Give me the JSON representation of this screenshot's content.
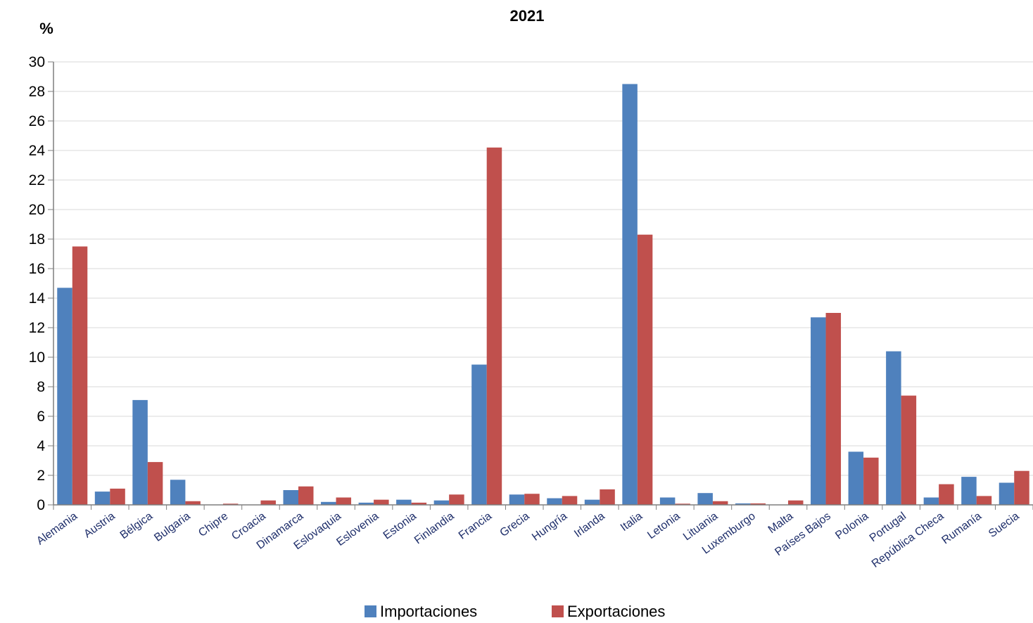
{
  "chart_data": {
    "type": "bar",
    "title": "2021",
    "ylabel": "%",
    "xlabel": "",
    "ylim": [
      0,
      30
    ],
    "yticks": [
      "0",
      "2",
      "4",
      "6",
      "8",
      "10",
      "12",
      "14",
      "16",
      "18",
      "20",
      "22",
      "24",
      "26",
      "28",
      "30"
    ],
    "grid": true,
    "legend_position": "bottom",
    "categories": [
      "Alemania",
      "Austria",
      "Bélgica",
      "Bulgaria",
      "Chipre",
      "Croacia",
      "Dinamarca",
      "Eslovaquia",
      "Eslovenia",
      "Estonia",
      "Finlandia",
      "Francia",
      "Grecia",
      "Hungría",
      "Irlanda",
      "Italia",
      "Letonia",
      "Lituania",
      "Luxemburgo",
      "Malta",
      "Países Bajos",
      "Polonia",
      "Portugal",
      "República Checa",
      "Rumanía",
      "Suecia"
    ],
    "series": [
      {
        "name": "Importaciones",
        "color": "#4f81bd",
        "values": [
          14.7,
          0.9,
          7.1,
          1.7,
          0.0,
          0.0,
          1.0,
          0.2,
          0.15,
          0.35,
          0.3,
          9.5,
          0.7,
          0.45,
          0.35,
          28.5,
          0.5,
          0.8,
          0.1,
          0.0,
          12.7,
          3.6,
          10.4,
          0.5,
          1.9,
          1.5
        ]
      },
      {
        "name": "Exportaciones",
        "color": "#c0504d",
        "values": [
          17.5,
          1.1,
          2.9,
          0.25,
          0.08,
          0.3,
          1.25,
          0.5,
          0.35,
          0.15,
          0.7,
          24.2,
          0.75,
          0.6,
          1.05,
          18.3,
          0.08,
          0.25,
          0.1,
          0.3,
          13.0,
          3.2,
          7.4,
          1.4,
          0.6,
          2.3
        ]
      }
    ]
  }
}
